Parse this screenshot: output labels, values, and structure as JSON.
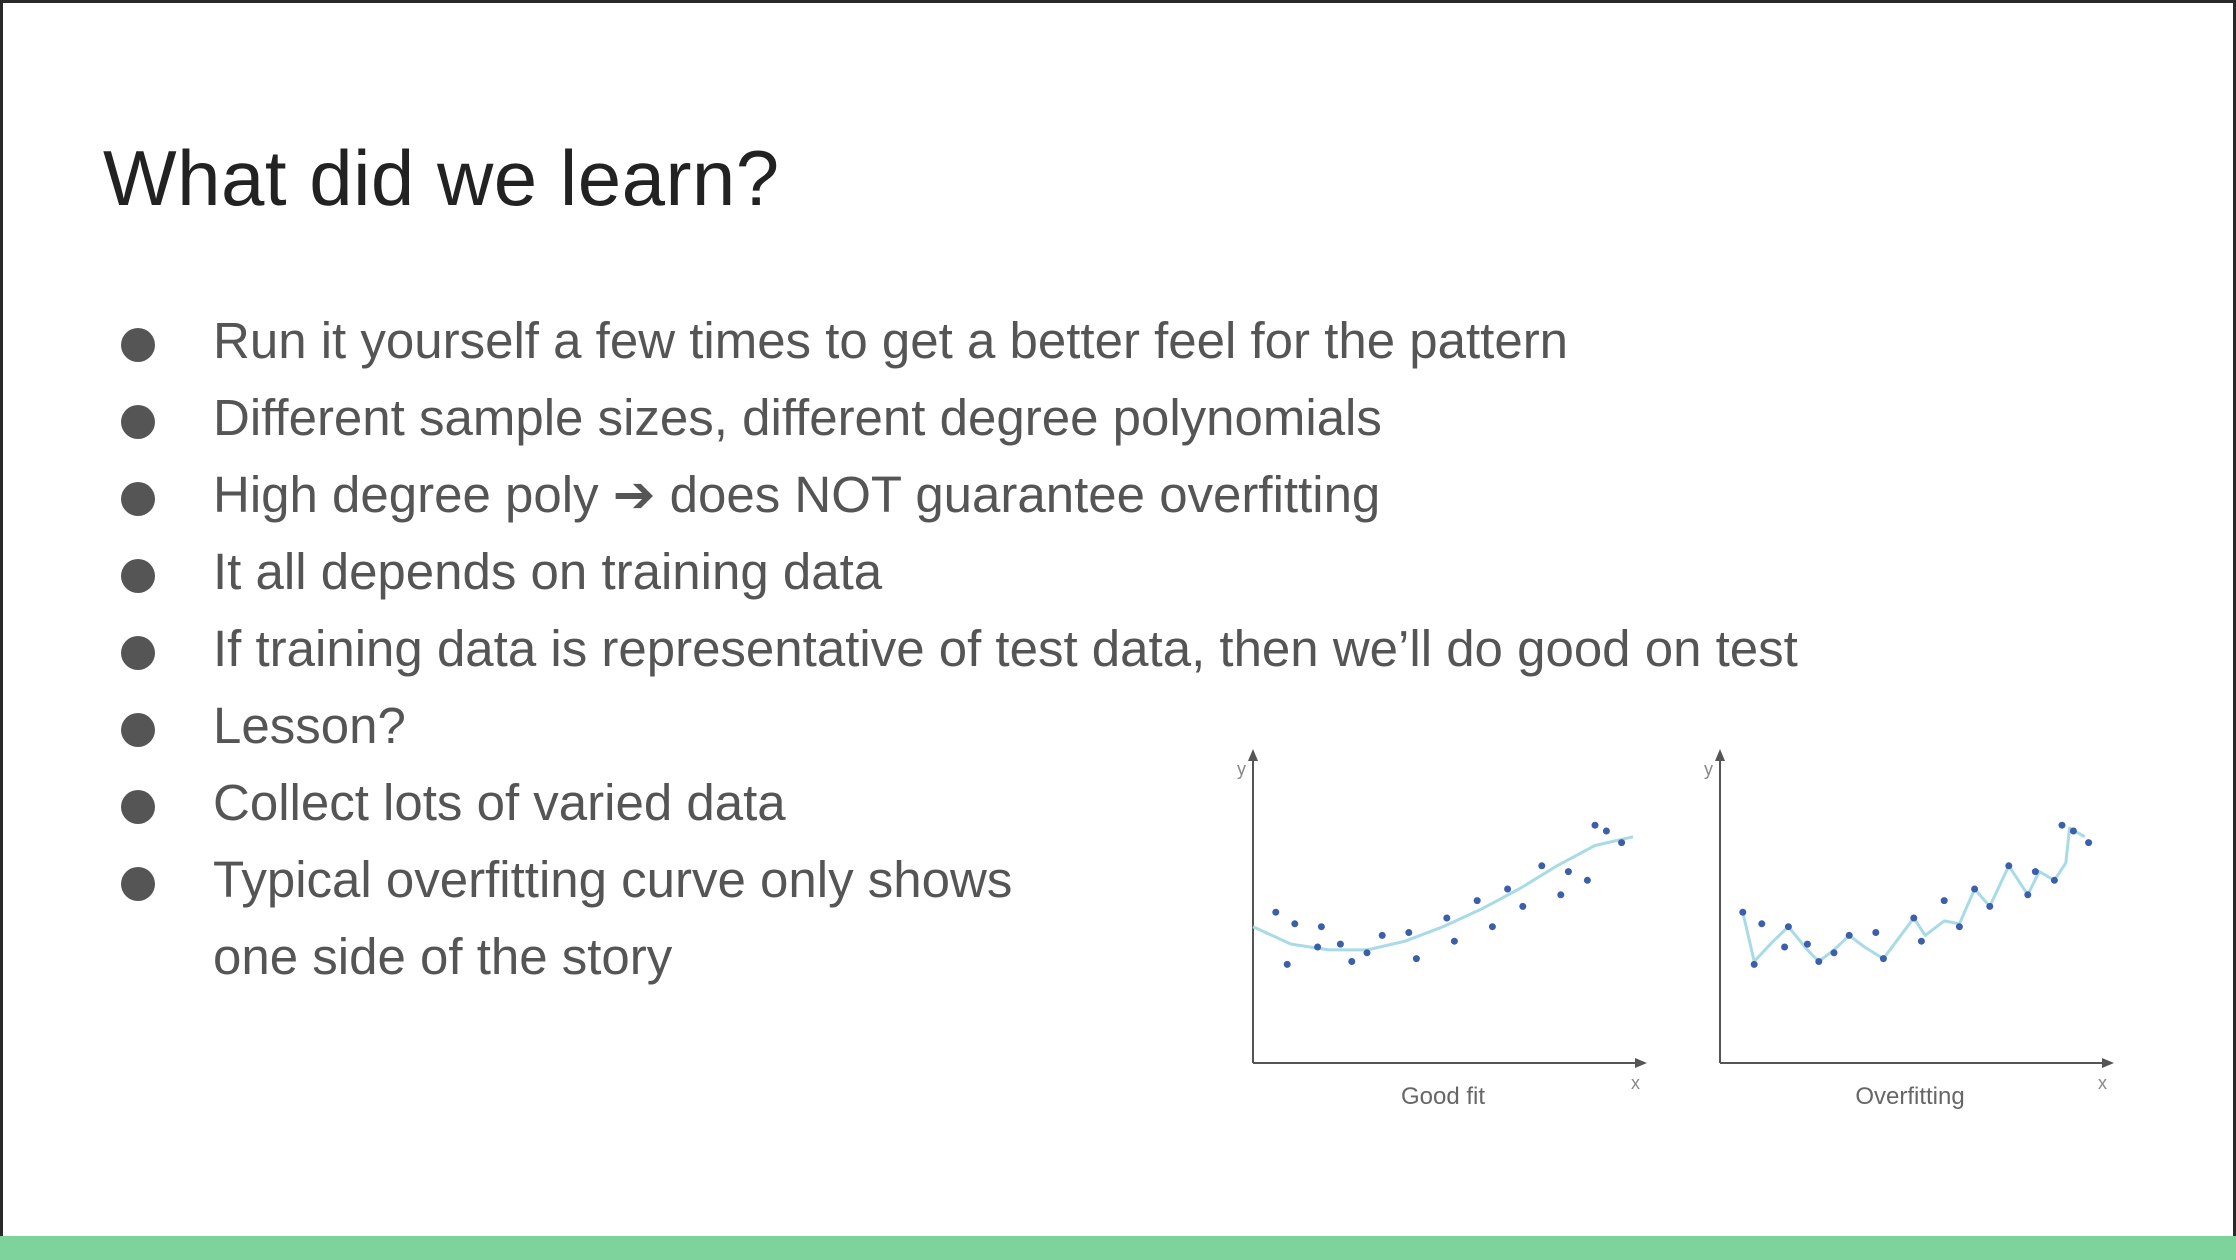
{
  "slide": {
    "title": "What did we learn?",
    "bullets": [
      "Run it yourself a few times to get a better feel for the pattern",
      "Different sample sizes, different degree polynomials",
      "High degree poly ➔ does NOT guarantee overfitting",
      "It all depends on training data",
      "If training data is representative of test data, then we’ll do good on test",
      "Lesson?",
      "Collect lots of varied data",
      "Typical overfitting curve only shows"
    ],
    "bullet_continuation": "one side of the story",
    "accent_color": "#7ed39c"
  },
  "chart_data": [
    {
      "type": "scatter",
      "title": "Good fit",
      "xlabel": "x",
      "ylabel": "y",
      "xlim": [
        0,
        10
      ],
      "ylim": [
        0,
        10
      ],
      "points": [
        [
          0.6,
          5.2
        ],
        [
          1.1,
          4.8
        ],
        [
          1.8,
          4.7
        ],
        [
          0.9,
          3.4
        ],
        [
          1.7,
          4.0
        ],
        [
          2.3,
          4.1
        ],
        [
          2.6,
          3.5
        ],
        [
          3.0,
          3.8
        ],
        [
          3.4,
          4.4
        ],
        [
          4.1,
          4.5
        ],
        [
          4.3,
          3.6
        ],
        [
          5.1,
          5.0
        ],
        [
          5.3,
          4.2
        ],
        [
          5.9,
          5.6
        ],
        [
          6.3,
          4.7
        ],
        [
          6.7,
          6.0
        ],
        [
          7.1,
          5.4
        ],
        [
          7.6,
          6.8
        ],
        [
          8.1,
          5.8
        ],
        [
          8.3,
          6.6
        ],
        [
          8.8,
          6.3
        ],
        [
          9.0,
          8.2
        ],
        [
          9.3,
          8.0
        ],
        [
          9.7,
          7.6
        ]
      ],
      "fit_curve": [
        [
          0,
          4.7
        ],
        [
          1,
          4.1
        ],
        [
          2,
          3.9
        ],
        [
          3,
          3.9
        ],
        [
          4,
          4.2
        ],
        [
          5,
          4.7
        ],
        [
          6,
          5.3
        ],
        [
          7,
          6.0
        ],
        [
          8,
          6.8
        ],
        [
          9,
          7.5
        ],
        [
          10,
          7.8
        ]
      ]
    },
    {
      "type": "scatter",
      "title": "Overfitting",
      "xlabel": "x",
      "ylabel": "y",
      "xlim": [
        0,
        10
      ],
      "ylim": [
        0,
        10
      ],
      "points": [
        [
          0.6,
          5.2
        ],
        [
          1.1,
          4.8
        ],
        [
          1.8,
          4.7
        ],
        [
          0.9,
          3.4
        ],
        [
          1.7,
          4.0
        ],
        [
          2.3,
          4.1
        ],
        [
          2.6,
          3.5
        ],
        [
          3.0,
          3.8
        ],
        [
          3.4,
          4.4
        ],
        [
          4.1,
          4.5
        ],
        [
          4.3,
          3.6
        ],
        [
          5.1,
          5.0
        ],
        [
          5.3,
          4.2
        ],
        [
          5.9,
          5.6
        ],
        [
          6.3,
          4.7
        ],
        [
          6.7,
          6.0
        ],
        [
          7.1,
          5.4
        ],
        [
          7.6,
          6.8
        ],
        [
          8.1,
          5.8
        ],
        [
          8.3,
          6.6
        ],
        [
          8.8,
          6.3
        ],
        [
          9.0,
          8.2
        ],
        [
          9.3,
          8.0
        ],
        [
          9.7,
          7.6
        ]
      ],
      "fit_curve": [
        [
          0.6,
          5.2
        ],
        [
          0.9,
          3.5
        ],
        [
          1.4,
          4.2
        ],
        [
          1.8,
          4.7
        ],
        [
          2.3,
          3.9
        ],
        [
          2.6,
          3.5
        ],
        [
          3.0,
          3.9
        ],
        [
          3.4,
          4.4
        ],
        [
          3.8,
          4.0
        ],
        [
          4.3,
          3.6
        ],
        [
          4.7,
          4.3
        ],
        [
          5.1,
          5.0
        ],
        [
          5.4,
          4.4
        ],
        [
          5.9,
          4.9
        ],
        [
          6.3,
          4.8
        ],
        [
          6.7,
          6.0
        ],
        [
          7.1,
          5.4
        ],
        [
          7.6,
          6.8
        ],
        [
          8.1,
          5.8
        ],
        [
          8.4,
          6.6
        ],
        [
          8.8,
          6.3
        ],
        [
          9.1,
          6.9
        ],
        [
          9.2,
          8.1
        ],
        [
          9.6,
          7.8
        ]
      ]
    }
  ]
}
